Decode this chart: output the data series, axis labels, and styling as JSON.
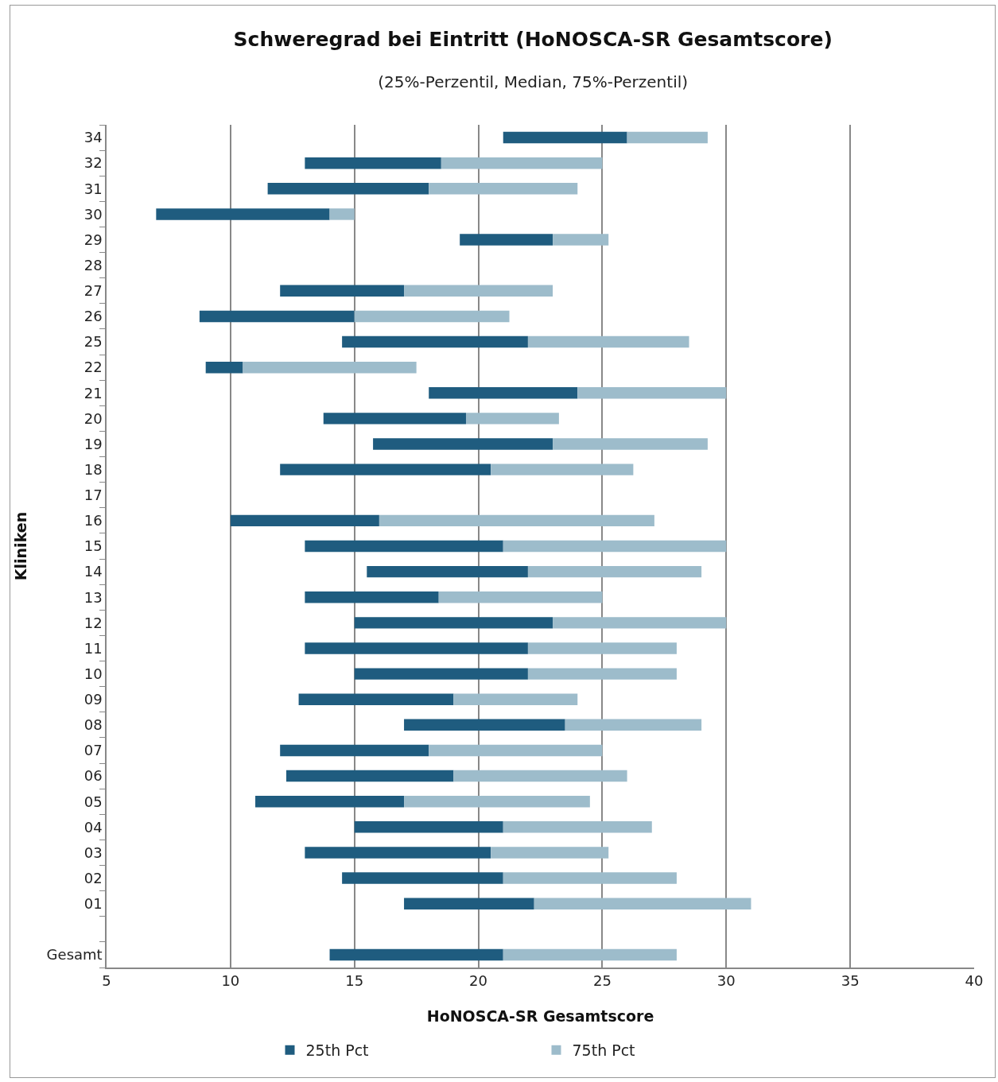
{
  "chart_data": {
    "type": "bar",
    "orientation": "horizontal",
    "title": "Schweregrad bei Eintritt (HoNOSCA-SR Gesamtscore)",
    "subtitle": "(25%-Perzentil, Median, 75%-Perzentil)",
    "xlabel": "HoNOSCA-SR Gesamtscore",
    "ylabel": "Kliniken",
    "categories": [
      "34",
      "32",
      "31",
      "30",
      "29",
      "28",
      "27",
      "26",
      "25",
      "22",
      "21",
      "20",
      "19",
      "18",
      "17",
      "16",
      "15",
      "14",
      "13",
      "12",
      "11",
      "10",
      "09",
      "08",
      "07",
      "06",
      "05",
      "04",
      "03",
      "02",
      "01",
      null,
      "Gesamt"
    ],
    "series": [
      {
        "name": "25th Pct",
        "color": "#1f5c7f",
        "base": [
          21,
          13,
          11.5,
          7,
          19.25,
          null,
          12,
          8.75,
          14.5,
          9,
          18,
          13.75,
          15.75,
          12,
          null,
          10,
          13,
          15.5,
          13,
          15,
          13,
          15,
          12.75,
          17,
          12,
          12.25,
          11,
          15,
          13,
          14.5,
          17,
          null,
          14
        ],
        "values": [
          5,
          5.5,
          6.5,
          7,
          3.75,
          null,
          5,
          6.25,
          7.5,
          1.5,
          6,
          5.75,
          7.25,
          8.5,
          null,
          6,
          8,
          6.5,
          5.4,
          8,
          9,
          7,
          6.25,
          6.5,
          6,
          6.75,
          6,
          6,
          7.5,
          6.5,
          5.25,
          null,
          7
        ]
      },
      {
        "name": "75th Pct",
        "color": "#9dbccb",
        "base": [
          26,
          18.5,
          18,
          14,
          23,
          null,
          17,
          15,
          22,
          10.5,
          24,
          19.5,
          23,
          20.5,
          null,
          16,
          21,
          22,
          18.4,
          23,
          22,
          22,
          19,
          23.5,
          18,
          19,
          17,
          21,
          20.5,
          21,
          22.25,
          null,
          21
        ],
        "values": [
          3.25,
          6.5,
          6,
          1,
          2.25,
          null,
          6,
          6.25,
          6.5,
          7,
          6,
          3.75,
          6.25,
          5.75,
          null,
          11.1,
          9,
          7,
          6.6,
          7,
          6,
          6,
          5,
          5.5,
          7,
          7,
          7.5,
          6,
          4.75,
          7,
          8.75,
          null,
          7
        ]
      }
    ],
    "xlim": [
      5,
      40
    ],
    "xticks": [
      5,
      10,
      15,
      20,
      25,
      30,
      35,
      40
    ],
    "grid": "x",
    "legend": "bottom"
  }
}
